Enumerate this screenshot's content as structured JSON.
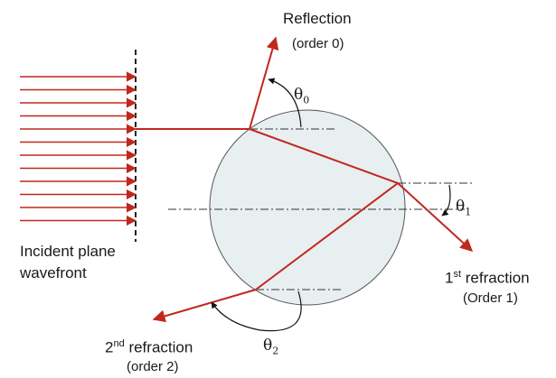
{
  "labels": {
    "reflection": "Reflection",
    "reflection_order": "(order 0)",
    "incident_line1": "Incident plane",
    "incident_line2": "wavefront",
    "first_refraction_num": "1",
    "first_refraction_sup": "st",
    "first_refraction_text": " refraction",
    "first_refraction_order": "(Order 1)",
    "second_refraction_num": "2",
    "second_refraction_sup": "nd",
    "second_refraction_text": " refraction",
    "second_refraction_order": "(order 2)",
    "theta0_symbol": "θ",
    "theta0_sub": "0",
    "theta1_symbol": "θ",
    "theta1_sub": "1",
    "theta2_symbol": "θ",
    "theta2_sub": "2"
  },
  "colors": {
    "ray": "#c0281e",
    "droplet_fill": "#e8eff0",
    "droplet_stroke": "#555555",
    "dashdot": "#333333",
    "wavefront": "#222222",
    "arc": "#111111"
  },
  "incident_ray_count": 12
}
